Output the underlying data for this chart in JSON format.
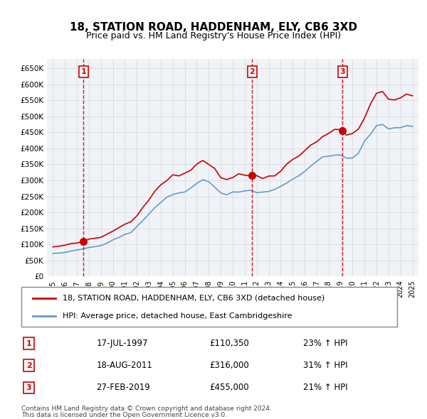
{
  "title": "18, STATION ROAD, HADDENHAM, ELY, CB6 3XD",
  "subtitle": "Price paid vs. HM Land Registry's House Price Index (HPI)",
  "legend_line1": "18, STATION ROAD, HADDENHAM, ELY, CB6 3XD (detached house)",
  "legend_line2": "HPI: Average price, detached house, East Cambridgeshire",
  "footer1": "Contains HM Land Registry data © Crown copyright and database right 2024.",
  "footer2": "This data is licensed under the Open Government Licence v3.0.",
  "sales": [
    {
      "label": "1",
      "date": "17-JUL-1997",
      "price": 110350,
      "hpi_pct": "23% ↑ HPI",
      "x": 1997.54
    },
    {
      "label": "2",
      "date": "18-AUG-2011",
      "price": 316000,
      "hpi_pct": "31% ↑ HPI",
      "x": 2011.63
    },
    {
      "label": "3",
      "date": "27-FEB-2019",
      "price": 455000,
      "hpi_pct": "21% ↑ HPI",
      "x": 2019.16
    }
  ],
  "ylim": [
    0,
    680000
  ],
  "xlim": [
    1994.5,
    2025.5
  ],
  "yticks": [
    0,
    50000,
    100000,
    150000,
    200000,
    250000,
    300000,
    350000,
    400000,
    450000,
    500000,
    550000,
    600000,
    650000
  ],
  "ytick_labels": [
    "£0",
    "£50K",
    "£100K",
    "£150K",
    "£200K",
    "£250K",
    "£300K",
    "£350K",
    "£400K",
    "£450K",
    "£500K",
    "£550K",
    "£600K",
    "£650K"
  ],
  "xticks": [
    1995,
    1996,
    1997,
    1998,
    1999,
    2000,
    2001,
    2002,
    2003,
    2004,
    2005,
    2006,
    2007,
    2008,
    2009,
    2010,
    2011,
    2012,
    2013,
    2014,
    2015,
    2016,
    2017,
    2018,
    2019,
    2020,
    2021,
    2022,
    2023,
    2024,
    2025
  ],
  "price_line_color": "#cc0000",
  "hpi_line_color": "#6699cc",
  "sale_marker_color": "#cc0000",
  "sale_label_color": "#cc0000",
  "vline_color": "#cc0000",
  "grid_color": "#dddddd",
  "bg_color": "#f0f4f8",
  "plot_bg_color": "#f0f4f8"
}
